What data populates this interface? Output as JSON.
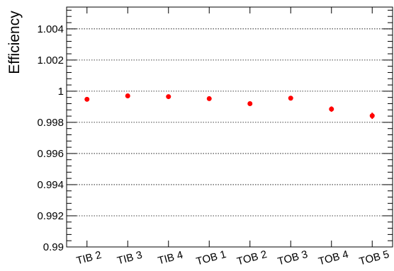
{
  "chart_data": {
    "type": "scatter",
    "ylabel": "Efficiency",
    "xlabel": "",
    "title": "",
    "categories": [
      "TIB 2",
      "TIB 3",
      "TIB 4",
      "TOB 1",
      "TOB 2",
      "TOB 3",
      "TOB 4",
      "TOB 5"
    ],
    "values": [
      0.99948,
      0.9997,
      0.99965,
      0.99952,
      0.9992,
      0.99955,
      0.99885,
      0.99842
    ],
    "errors": [
      0.00011,
      5e-05,
      7e-05,
      5e-05,
      0.00012,
      0.00012,
      0.00017,
      0.0002
    ],
    "ylim": [
      0.99,
      1.0054
    ],
    "y_ticks": [
      0.99,
      0.992,
      0.994,
      0.996,
      0.998,
      1,
      1.002,
      1.004
    ],
    "y_tick_labels": [
      "0.99",
      "0.992",
      "0.994",
      "0.996",
      "0.998",
      "1",
      "1.002",
      "1.004"
    ],
    "grid": "horizontal-dotted",
    "marker_color": "#ff0000",
    "axis_color": "#000000",
    "grid_color": "#000000"
  }
}
